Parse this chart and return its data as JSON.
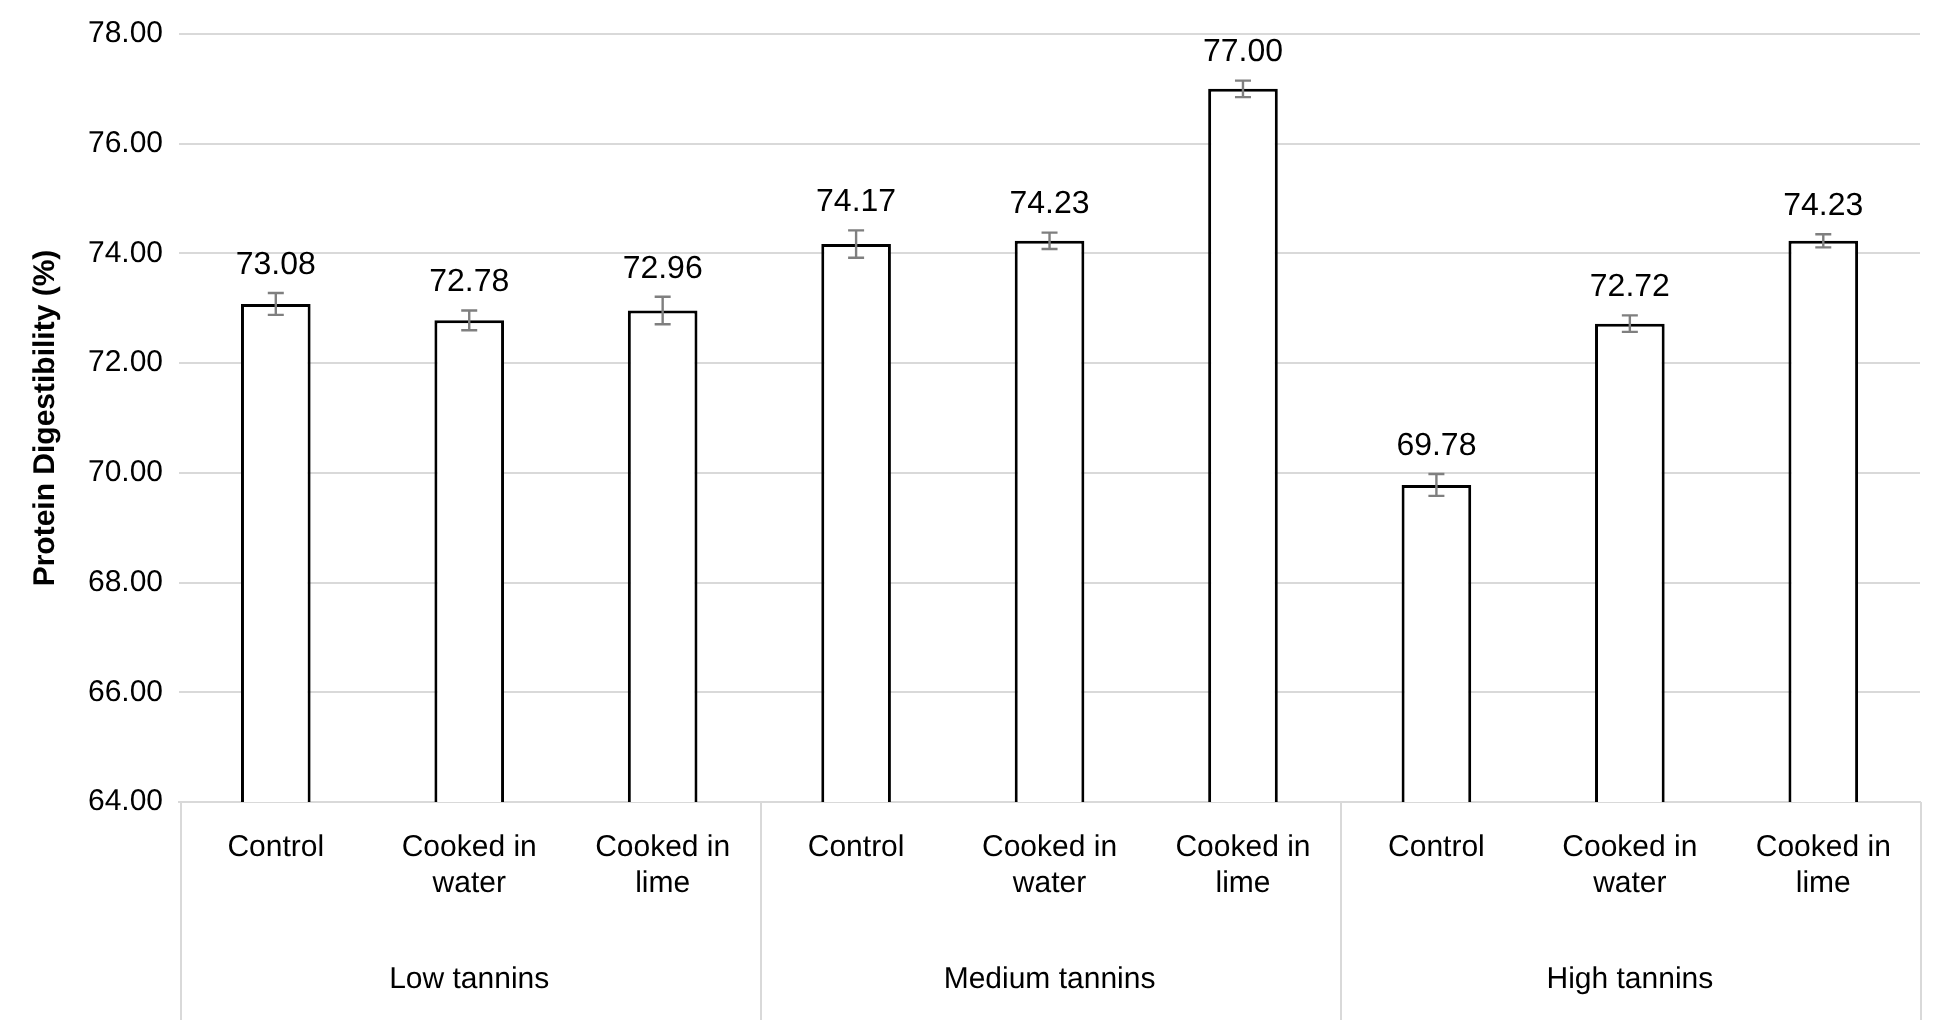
{
  "chart_data": {
    "type": "bar",
    "ylabel": "Protein Digestibility (%)",
    "categories": [
      "Control",
      "Cooked in water",
      "Cooked in lime",
      "Control",
      "Cooked in water",
      "Cooked in lime",
      "Control",
      "Cooked in water",
      "Cooked in lime"
    ],
    "values": [
      73.08,
      72.78,
      72.96,
      74.17,
      74.23,
      77.0,
      69.78,
      72.72,
      74.23
    ],
    "value_labels": [
      "73.08",
      "72.78",
      "72.96",
      "74.17",
      "74.23",
      "77.00",
      "69.78",
      "72.72",
      "74.23"
    ],
    "errors": [
      0.2,
      0.18,
      0.25,
      0.25,
      0.15,
      0.15,
      0.2,
      0.15,
      0.12
    ],
    "color": "#ffffff",
    "ylim": [
      64,
      78
    ],
    "yticks": [
      {
        "value": 64,
        "label": "64.00"
      },
      {
        "value": 66,
        "label": "66.00"
      },
      {
        "value": 68,
        "label": "68.00"
      },
      {
        "value": 70,
        "label": "70.00"
      },
      {
        "value": 72,
        "label": "72.00"
      },
      {
        "value": 74,
        "label": "74.00"
      },
      {
        "value": 76,
        "label": "76.00"
      },
      {
        "value": 78,
        "label": "78.00"
      }
    ],
    "grid": "y",
    "legend": false,
    "annotations": [
      "Low tannins",
      "Medium tannins",
      "High tannins"
    ]
  }
}
